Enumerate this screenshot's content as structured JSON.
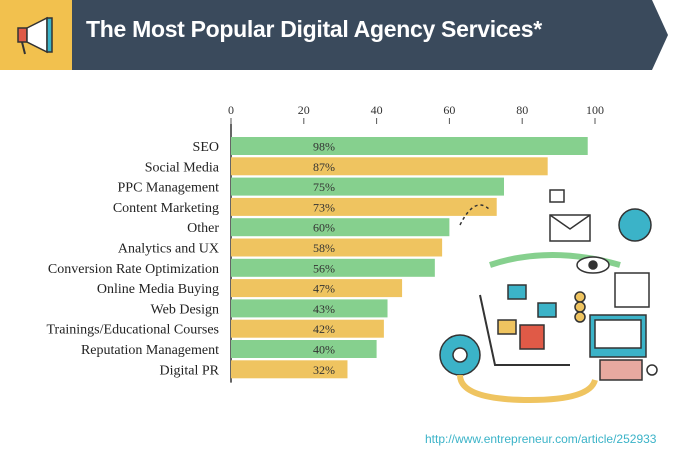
{
  "header": {
    "title": "The Most Popular Digital Agency Services*",
    "accent_color": "#f2c14e",
    "bar_color": "#3a4a5c",
    "icon": "megaphone-icon"
  },
  "source": "http://www.entrepreneur.com/article/252933",
  "colors": {
    "green": "#86d08e",
    "yellow": "#efc460"
  },
  "chart_data": {
    "type": "bar",
    "orientation": "horizontal",
    "title": "The Most Popular Digital Agency Services*",
    "xlabel": "",
    "ylabel": "",
    "xlim": [
      0,
      100
    ],
    "x_ticks": [
      0,
      20,
      40,
      60,
      80,
      100
    ],
    "grid": false,
    "categories": [
      "SEO",
      "Social Media",
      "PPC Management",
      "Content Marketing",
      "Other",
      "Analytics and UX",
      "Conversion Rate Optimization",
      "Online Media Buying",
      "Web Design",
      "Trainings/Educational Courses",
      "Reputation Management",
      "Digital PR"
    ],
    "values": [
      98,
      87,
      75,
      73,
      60,
      58,
      56,
      47,
      43,
      42,
      40,
      32
    ],
    "value_labels": [
      "98%",
      "87%",
      "75%",
      "73%",
      "60%",
      "58%",
      "56%",
      "47%",
      "43%",
      "42%",
      "40%",
      "32%"
    ]
  }
}
